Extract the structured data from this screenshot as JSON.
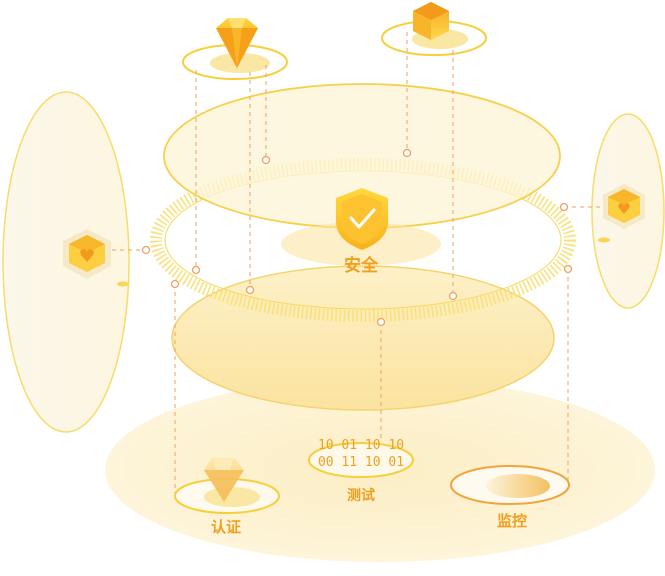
{
  "labels": {
    "security": "安全",
    "auth": "认证",
    "test": "测试",
    "monitor": "监控"
  },
  "binary": {
    "line1": "10 01 10 10",
    "line2": "00 11 10 01"
  },
  "icons": {
    "left_cube": "hexagon-heart-icon",
    "right_cube": "hexagon-heart-icon",
    "top_hexagon": "hexagon-gem-icon",
    "top_diamond": "diamond-gem-icon",
    "center_shield": "shield-check-icon",
    "bottom_diamond": "diamond-gem-icon",
    "bottom_disk": "disk-icon"
  },
  "colors": {
    "accent": "#f0a020",
    "gold": "#ffcf3a",
    "light_fill": "#fdf3d4",
    "dash": "#f0a060"
  }
}
